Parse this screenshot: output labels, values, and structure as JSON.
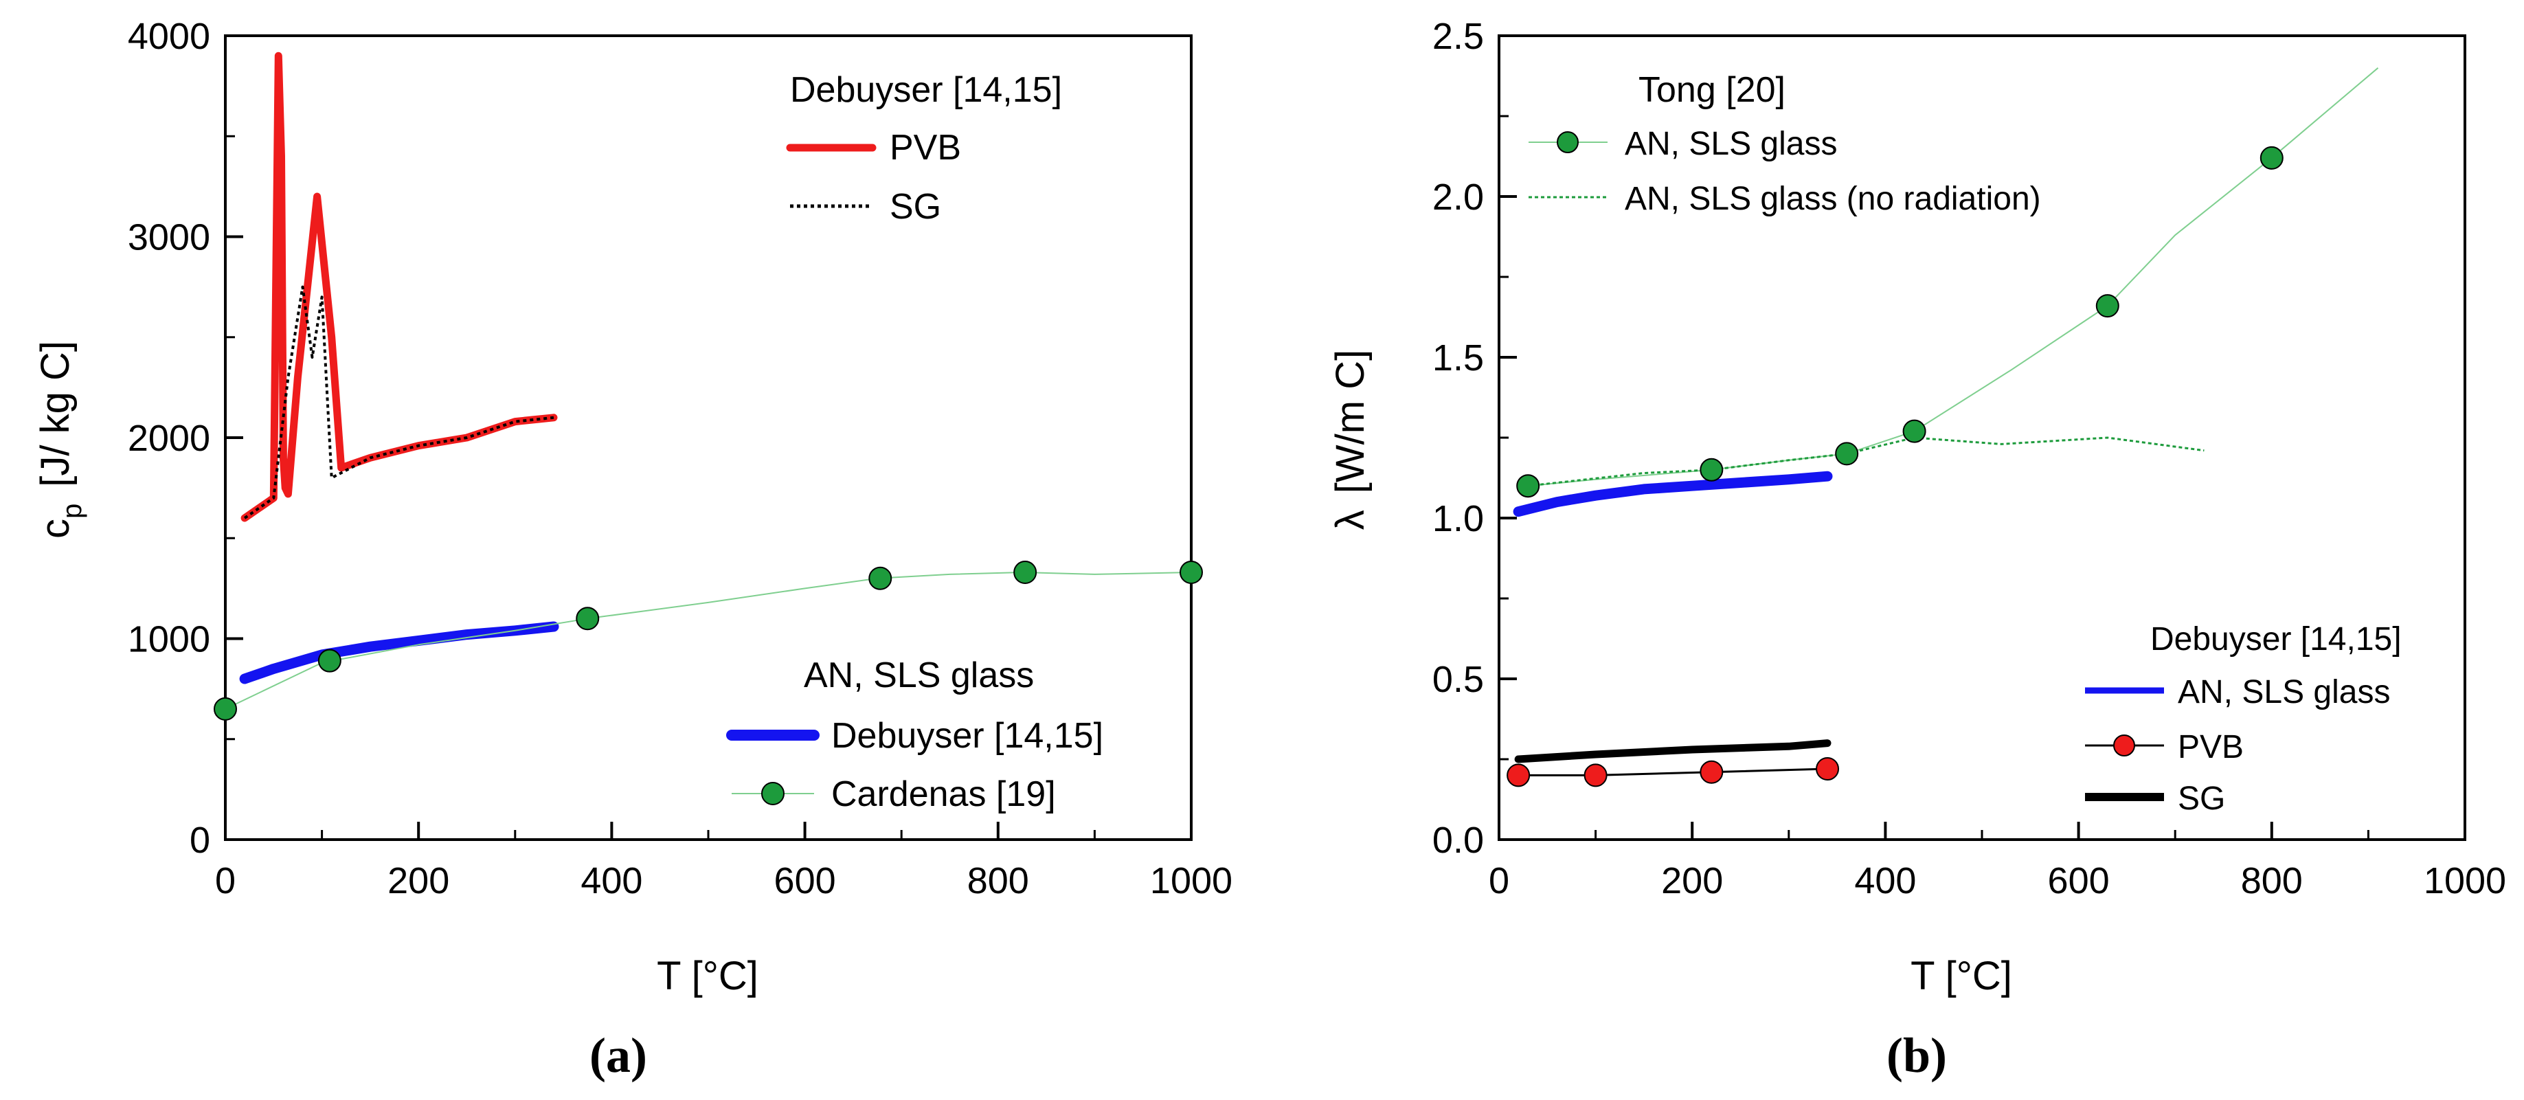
{
  "colors": {
    "red": "#ee1c1c",
    "blue": "#1414f0",
    "green": "#1d9b3c",
    "green_line": "#7fcf8f",
    "black": "#000000"
  },
  "chart_data": [
    {
      "type": "line",
      "panel_label": "(a)",
      "xlabel": "T  [°C]",
      "ylabel_main": "c",
      "ylabel_sub": "p",
      "ylabel_unit": "[J/ kg C]",
      "xlim": [
        0,
        1000
      ],
      "ylim": [
        0,
        4000
      ],
      "xticks": [
        "0",
        "200",
        "400",
        "600",
        "800",
        "1000"
      ],
      "yticks": [
        "0",
        "1000",
        "2000",
        "3000",
        "4000"
      ],
      "legends": [
        {
          "title": "Debuyser [14,15]",
          "position": "top-right",
          "entries": [
            {
              "label": "PVB",
              "series": "PVB"
            },
            {
              "label": "SG",
              "series": "SG"
            }
          ]
        },
        {
          "title": "AN, SLS glass",
          "position": "bottom-right",
          "entries": [
            {
              "label": "Debuyser [14,15]",
              "series": "Debuyser AN, SLS glass"
            },
            {
              "label": "Cardenas [19]",
              "series": "Cardenas AN, SLS glass"
            }
          ]
        }
      ],
      "series": [
        {
          "name": "PVB",
          "color": "#ee1c1c",
          "style": "thick",
          "x": [
            20,
            50,
            55,
            58,
            60,
            62,
            65,
            75,
            95,
            110,
            120,
            150,
            200,
            250,
            300,
            340
          ],
          "y": [
            1600,
            1700,
            3900,
            3400,
            1900,
            1750,
            1720,
            2300,
            3200,
            2500,
            1850,
            1900,
            1960,
            2000,
            2080,
            2100
          ]
        },
        {
          "name": "SG",
          "color": "#000000",
          "style": "dotted",
          "x": [
            20,
            50,
            65,
            80,
            90,
            100,
            110,
            150,
            200,
            250,
            300,
            340
          ],
          "y": [
            1600,
            1700,
            2300,
            2750,
            2400,
            2700,
            1800,
            1900,
            1960,
            2000,
            2080,
            2100
          ]
        },
        {
          "name": "Debuyser AN, SLS glass",
          "color": "#1414f0",
          "style": "very-thick",
          "x": [
            20,
            50,
            100,
            150,
            200,
            250,
            300,
            340
          ],
          "y": [
            800,
            850,
            920,
            960,
            990,
            1020,
            1040,
            1060
          ]
        },
        {
          "name": "Cardenas AN, SLS glass",
          "color": "#1d9b3c",
          "style": "thin-markers",
          "x": [
            0,
            100,
            200,
            300,
            375,
            500,
            600,
            675,
            750,
            825,
            900,
            1000
          ],
          "y": [
            650,
            880,
            970,
            1040,
            1100,
            1180,
            1250,
            1300,
            1320,
            1330,
            1320,
            1330
          ],
          "markers": [
            [
              0,
              650
            ],
            [
              108,
              890
            ],
            [
              375,
              1100
            ],
            [
              678,
              1300
            ],
            [
              828,
              1330
            ],
            [
              1000,
              1330
            ]
          ]
        }
      ]
    },
    {
      "type": "line",
      "panel_label": "(b)",
      "xlabel": "T  [°C]",
      "ylabel_main": "λ",
      "ylabel_unit": "[W/m C]",
      "xlim": [
        0,
        1000
      ],
      "ylim": [
        0.0,
        2.5
      ],
      "xticks": [
        "0",
        "200",
        "400",
        "600",
        "800",
        "1000"
      ],
      "yticks": [
        "0.0",
        "0.5",
        "1.0",
        "1.5",
        "2.0",
        "2.5"
      ],
      "legends": [
        {
          "title": "Tong [20]",
          "position": "top-left",
          "entries": [
            {
              "label": "AN, SLS glass",
              "series": "Tong AN, SLS glass"
            },
            {
              "label": "AN, SLS glass (no radiation)",
              "series": "Tong AN, SLS glass (no radiation)"
            }
          ]
        },
        {
          "title": "Debuyser [14,15]",
          "position": "bottom-right",
          "entries": [
            {
              "label": "AN, SLS glass",
              "series": "Debuyser AN, SLS glass"
            },
            {
              "label": "PVB",
              "series": "PVB"
            },
            {
              "label": "SG",
              "series": "SG"
            }
          ]
        }
      ],
      "series": [
        {
          "name": "Tong AN, SLS glass",
          "color": "#1d9b3c",
          "style": "thin-markers",
          "x": [
            30,
            100,
            220,
            300,
            360,
            430,
            530,
            630,
            700,
            800,
            910
          ],
          "y": [
            1.1,
            1.12,
            1.15,
            1.18,
            1.2,
            1.27,
            1.46,
            1.66,
            1.88,
            2.12,
            2.4
          ],
          "markers": [
            [
              30,
              1.1
            ],
            [
              220,
              1.15
            ],
            [
              360,
              1.2
            ],
            [
              430,
              1.27
            ],
            [
              630,
              1.66
            ],
            [
              800,
              2.12
            ]
          ]
        },
        {
          "name": "Tong AN, SLS glass (no radiation)",
          "color": "#1d9b3c",
          "style": "dashed",
          "x": [
            30,
            150,
            220,
            300,
            360,
            430,
            520,
            630,
            730
          ],
          "y": [
            1.1,
            1.14,
            1.15,
            1.18,
            1.2,
            1.25,
            1.23,
            1.25,
            1.21
          ]
        },
        {
          "name": "Debuyser AN, SLS glass",
          "color": "#1414f0",
          "style": "very-thick",
          "x": [
            20,
            60,
            100,
            150,
            200,
            250,
            300,
            340
          ],
          "y": [
            1.02,
            1.05,
            1.07,
            1.09,
            1.1,
            1.11,
            1.12,
            1.13
          ]
        },
        {
          "name": "PVB",
          "color": "#000000",
          "style": "thin-markers-red",
          "x": [
            20,
            100,
            220,
            340
          ],
          "y": [
            0.2,
            0.2,
            0.21,
            0.22
          ],
          "markers": [
            [
              20,
              0.2
            ],
            [
              100,
              0.2
            ],
            [
              220,
              0.21
            ],
            [
              340,
              0.22
            ]
          ]
        },
        {
          "name": "SG",
          "color": "#000000",
          "style": "thick",
          "x": [
            20,
            100,
            200,
            300,
            340
          ],
          "y": [
            0.25,
            0.265,
            0.28,
            0.29,
            0.3
          ]
        }
      ]
    }
  ]
}
